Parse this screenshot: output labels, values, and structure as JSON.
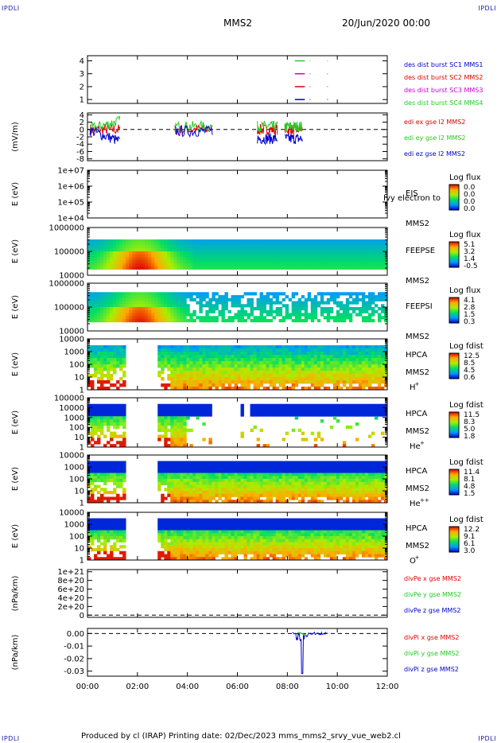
{
  "corners": {
    "tl": "IPDLI",
    "tr": "IPDLI",
    "bl": "IPDLI",
    "br": "IPDLI"
  },
  "header": {
    "spacecraft": "MMS2",
    "date": "20/Jun/2020 00:00"
  },
  "footer": {
    "text": "Produced by cl (IRAP)    Printing date: 02/Dec/2023    mms_mms2_srvy_vue_web2.cl"
  },
  "colors": {
    "red": "#e00000",
    "green": "#22cc22",
    "blue": "#0000cc",
    "magenta": "#cc00cc"
  },
  "chart_data": {
    "type": "stacked-timeseries",
    "x": {
      "ticks": [
        "00:00",
        "02:00",
        "04:00",
        "06:00",
        "08:00",
        "10:00",
        "12:00"
      ],
      "range_hours": [
        0,
        12
      ]
    },
    "panels": [
      {
        "id": "burst",
        "type": "line",
        "yticks": [
          "1",
          "2",
          "3",
          "4"
        ],
        "ylim": [
          0.7,
          4.4
        ],
        "series": [
          {
            "name": "des dist burst SC1 MMS1",
            "color": "#0000cc",
            "level": 1,
            "segments": [
              [
                8.3,
                8.7
              ],
              [
                8.9,
                8.92
              ],
              [
                9.6,
                9.62
              ]
            ]
          },
          {
            "name": "des dist burst SC2 MMS2",
            "color": "#e00000",
            "level": 2,
            "segments": [
              [
                8.3,
                8.7
              ],
              [
                8.9,
                8.92
              ],
              [
                9.6,
                9.62
              ]
            ]
          },
          {
            "name": "des dist burst SC3 MMS3",
            "color": "#cc00cc",
            "level": 3,
            "segments": [
              [
                8.3,
                8.7
              ],
              [
                8.9,
                8.92
              ],
              [
                9.6,
                9.62
              ]
            ]
          },
          {
            "name": "des dist burst SC4 MMS4",
            "color": "#22cc22",
            "level": 4,
            "segments": [
              [
                8.3,
                8.7
              ],
              [
                8.9,
                8.92
              ],
              [
                9.6,
                9.62
              ]
            ]
          }
        ]
      },
      {
        "id": "edi",
        "type": "line",
        "ylabel": "(mV/m)",
        "yticks": [
          "-8",
          "-6",
          "-4",
          "-2",
          "0",
          "2",
          "4"
        ],
        "ylim": [
          -8.5,
          4.5
        ],
        "series": [
          {
            "name": "edi ex gse l2 MMS2",
            "color": "#e00000"
          },
          {
            "name": "edi ey gse l2 MMS2",
            "color": "#22cc22"
          },
          {
            "name": "edi ez gse l2 MMS2",
            "color": "#0000cc"
          }
        ],
        "intervals": [
          [
            0.1,
            1.3
          ],
          [
            3.5,
            5.0
          ],
          [
            6.8,
            7.6
          ],
          [
            7.9,
            8.6
          ]
        ]
      },
      {
        "id": "eis",
        "type": "heatmap",
        "ylabel": "E (eV)",
        "yticks": [
          "1e+04",
          "1e+05",
          "1e+06",
          "1e+07"
        ],
        "instrument": "EIS",
        "overlay": "Ivy electron to",
        "spacecraft": "MMS2",
        "colorbar": {
          "title": "Log flux",
          "ticks": [
            "0.0",
            "0.0",
            "0.0",
            "0.0"
          ]
        },
        "empty": true
      },
      {
        "id": "feepse",
        "type": "heatmap",
        "ylabel": "E (eV)",
        "yticks": [
          "10000",
          "100000",
          "1000000"
        ],
        "instrument": "FEEPSE",
        "spacecraft": "MMS2",
        "colorbar": {
          "title": "Log flux",
          "ticks": [
            "5.1",
            "3.2",
            "1.4",
            "-0.5"
          ]
        },
        "coverage": [
          [
            0,
            12
          ]
        ]
      },
      {
        "id": "feepsi",
        "type": "heatmap",
        "ylabel": "E (eV)",
        "yticks": [
          "10000",
          "100000",
          "1000000"
        ],
        "instrument": "FEEPSI",
        "spacecraft": "MMS2",
        "colorbar": {
          "title": "Log flux",
          "ticks": [
            "4.1",
            "2.8",
            "1.5",
            "0.3"
          ]
        },
        "coverage": [
          [
            0,
            12
          ]
        ]
      },
      {
        "id": "hpca-h",
        "type": "heatmap",
        "ylabel": "E (eV)",
        "yticks": [
          "1",
          "10",
          "100",
          "1000",
          "10000"
        ],
        "instrument": "HPCA",
        "spacecraft": "MMS2",
        "species": "H",
        "charge": "+",
        "colorbar": {
          "title": "Log fdist",
          "ticks": [
            "12.5",
            "8.5",
            "4.5",
            "0.6"
          ]
        },
        "coverage": [
          [
            0,
            1.5
          ],
          [
            2.8,
            12
          ]
        ]
      },
      {
        "id": "hpca-he",
        "type": "heatmap",
        "ylabel": "E (eV)",
        "yticks": [
          "1",
          "10",
          "100",
          "1000",
          "10000",
          "100000"
        ],
        "instrument": "HPCA",
        "spacecraft": "MMS2",
        "species": "He",
        "charge": "+",
        "colorbar": {
          "title": "Log fdist",
          "ticks": [
            "11.5",
            "8.3",
            "5.0",
            "1.8"
          ]
        },
        "coverage": [
          [
            0,
            1.5
          ],
          [
            2.8,
            5.0
          ],
          [
            6.1,
            6.2
          ],
          [
            6.5,
            12
          ]
        ]
      },
      {
        "id": "hpca-hepp",
        "type": "heatmap",
        "ylabel": "E (eV)",
        "yticks": [
          "1",
          "10",
          "100",
          "1000",
          "10000"
        ],
        "instrument": "HPCA",
        "spacecraft": "MMS2",
        "species": "He",
        "charge": "++",
        "colorbar": {
          "title": "Log fdist",
          "ticks": [
            "11.4",
            "8.1",
            "4.8",
            "1.5"
          ]
        },
        "coverage": [
          [
            0,
            1.5
          ],
          [
            2.8,
            12
          ]
        ]
      },
      {
        "id": "hpca-o",
        "type": "heatmap",
        "ylabel": "E (eV)",
        "yticks": [
          "1",
          "10",
          "100",
          "1000",
          "10000"
        ],
        "instrument": "HPCA",
        "spacecraft": "MMS2",
        "species": "O",
        "charge": "+",
        "colorbar": {
          "title": "Log fdist",
          "ticks": [
            "12.2",
            "9.1",
            "6.1",
            "3.0"
          ]
        },
        "coverage": [
          [
            0,
            1.5
          ],
          [
            2.8,
            12
          ]
        ]
      },
      {
        "id": "divpe",
        "type": "line",
        "ylabel": "(nPa/km)",
        "yticks": [
          "0",
          "2e+20",
          "4e+20",
          "6e+20",
          "8e+20",
          "1e+21"
        ],
        "ylim": [
          -5e+19,
          1.05e+21
        ],
        "series": [
          {
            "name": "divPe x gse MMS2",
            "color": "#e00000"
          },
          {
            "name": "divPe y gse MMS2",
            "color": "#22cc22"
          },
          {
            "name": "divPe z gse MMS2",
            "color": "#0000cc"
          }
        ]
      },
      {
        "id": "divpi",
        "type": "line",
        "ylabel": "(nPa/km)",
        "yticks": [
          "-0.03",
          "-0.02",
          "-0.01",
          "0.00"
        ],
        "ylim": [
          -0.034,
          0.004
        ],
        "series": [
          {
            "name": "divPi x gse MMS2",
            "color": "#e00000"
          },
          {
            "name": "divPi y gse MMS2",
            "color": "#22cc22"
          },
          {
            "name": "divPi z gse MMS2",
            "color": "#0000cc"
          }
        ],
        "spike": {
          "time": 8.6,
          "value": -0.032
        }
      }
    ]
  }
}
